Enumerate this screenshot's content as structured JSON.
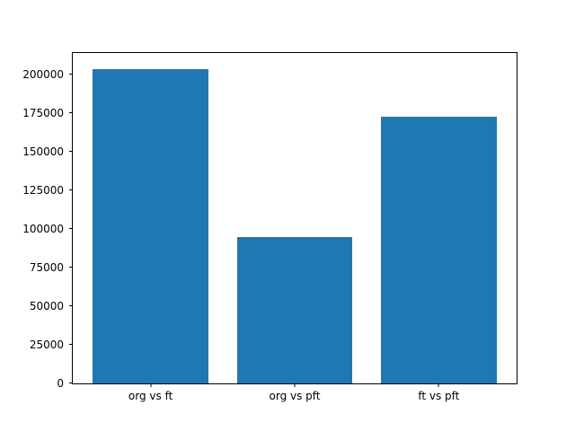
{
  "chart_data": {
    "type": "bar",
    "categories": [
      "org vs ft",
      "org vs pft",
      "ft vs pft"
    ],
    "values": [
      204000,
      95000,
      173000
    ],
    "title": "",
    "xlabel": "",
    "ylabel": "",
    "ylim": [
      0,
      214200
    ],
    "xlim": [
      -0.54,
      2.54
    ],
    "yticks": [
      0,
      25000,
      50000,
      75000,
      100000,
      125000,
      150000,
      175000,
      200000
    ],
    "bar_width_data_units": 0.8,
    "bar_color": "#1f77b4",
    "grid": false,
    "legend": null
  },
  "figure": {
    "background": "#ffffff"
  }
}
